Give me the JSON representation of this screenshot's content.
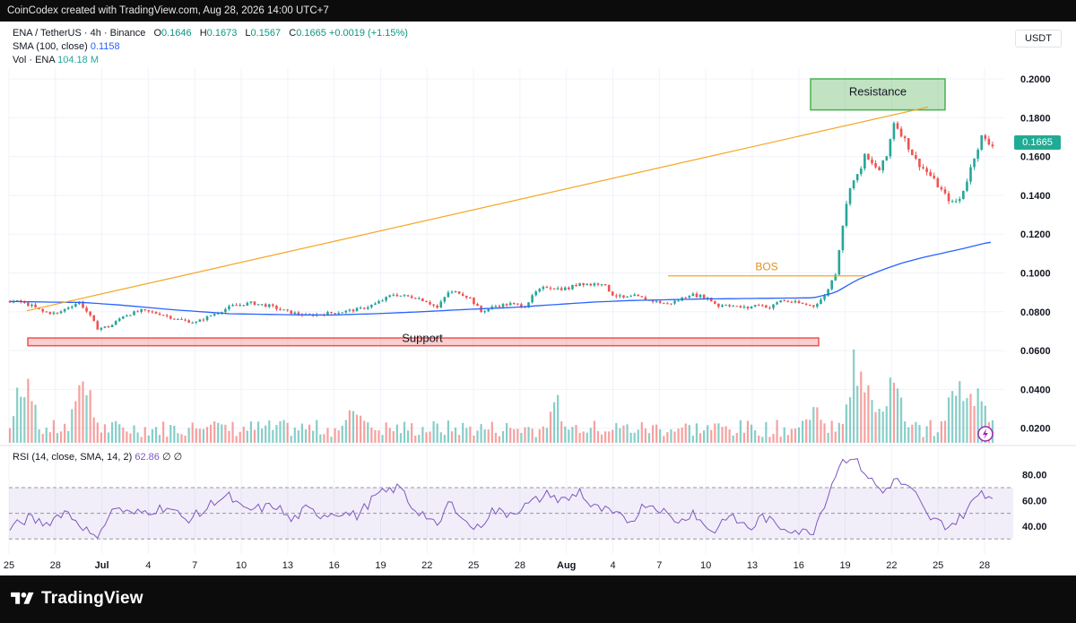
{
  "header": {
    "attribution": "CoinCodex created with TradingView.com, Aug 28, 2026 14:00 UTC+7"
  },
  "legend": {
    "symbol": "ENA / TetherUS · 4h · Binance",
    "o_label": "O",
    "o": "0.1646",
    "h_label": "H",
    "h": "0.1673",
    "l_label": "L",
    "l": "0.1567",
    "c_label": "C",
    "c": "0.1665",
    "change": "+0.0019 (+1.15%)",
    "sma_label": "SMA (100, close)",
    "sma_value": "0.1158",
    "vol_label": "Vol · ENA",
    "vol_value": "104.18 M",
    "rsi_label": "RSI (14, close, SMA, 14, 2)",
    "rsi_value": "62.86",
    "rsi_extra": "∅ ∅"
  },
  "currency": "USDT",
  "last_price": "0.1665",
  "footer": {
    "brand": "TradingView"
  },
  "colors": {
    "up": "#26a69a",
    "down": "#ef5350",
    "sma": "#2962ff",
    "trend": "#f5a623",
    "rsi": "#7e57c2",
    "support": "#ef5350",
    "resistance": "#4caf50"
  },
  "chart_data": {
    "type": "candlestick",
    "price_axis": {
      "ticks": [
        "0.2000",
        "0.1800",
        "0.1600",
        "0.1400",
        "0.1200",
        "0.1000",
        "0.0800",
        "0.0600",
        "0.0400",
        "0.0200"
      ],
      "ylim": [
        0.01,
        0.2
      ]
    },
    "rsi_axis": {
      "ticks": [
        "80.00",
        "60.00",
        "40.00"
      ],
      "upper_band": 70,
      "lower_band": 30
    },
    "x_axis": {
      "ticks": [
        "25",
        "28",
        "Jul",
        "4",
        "7",
        "10",
        "13",
        "16",
        "19",
        "22",
        "25",
        "28",
        "Aug",
        "4",
        "7",
        "10",
        "13",
        "16",
        "19",
        "22",
        "25",
        "28"
      ]
    },
    "annotations": {
      "resistance": "Resistance",
      "support": "Support",
      "bos": "BOS",
      "support_range": [
        0.0625,
        0.0665
      ],
      "resistance_range": [
        0.184,
        0.2
      ],
      "bos_level": 0.0985
    },
    "price_path": [
      [
        0,
        0.0855
      ],
      [
        6,
        0.085
      ],
      [
        12,
        0.083
      ],
      [
        18,
        0.08
      ],
      [
        26,
        0.079
      ],
      [
        32,
        0.0825
      ],
      [
        38,
        0.085
      ],
      [
        43,
        0.079
      ],
      [
        48,
        0.0715
      ],
      [
        55,
        0.0725
      ],
      [
        62,
        0.078
      ],
      [
        72,
        0.0805
      ],
      [
        82,
        0.079
      ],
      [
        92,
        0.076
      ],
      [
        102,
        0.0745
      ],
      [
        112,
        0.079
      ],
      [
        122,
        0.083
      ],
      [
        132,
        0.0845
      ],
      [
        142,
        0.083
      ],
      [
        152,
        0.08
      ],
      [
        162,
        0.078
      ],
      [
        172,
        0.079
      ],
      [
        182,
        0.08
      ],
      [
        192,
        0.0815
      ],
      [
        200,
        0.084
      ],
      [
        210,
        0.089
      ],
      [
        216,
        0.088
      ],
      [
        222,
        0.0875
      ],
      [
        228,
        0.0855
      ],
      [
        234,
        0.082
      ],
      [
        240,
        0.09
      ],
      [
        246,
        0.09
      ],
      [
        252,
        0.087
      ],
      [
        258,
        0.08
      ],
      [
        266,
        0.083
      ],
      [
        274,
        0.084
      ],
      [
        282,
        0.083
      ],
      [
        288,
        0.09
      ],
      [
        294,
        0.093
      ],
      [
        300,
        0.092
      ],
      [
        306,
        0.092
      ],
      [
        312,
        0.095
      ],
      [
        318,
        0.094
      ],
      [
        324,
        0.095
      ],
      [
        330,
        0.089
      ],
      [
        336,
        0.087
      ],
      [
        342,
        0.088
      ],
      [
        350,
        0.086
      ],
      [
        360,
        0.084
      ],
      [
        366,
        0.086
      ],
      [
        372,
        0.089
      ],
      [
        378,
        0.088
      ],
      [
        382,
        0.087
      ],
      [
        388,
        0.083
      ],
      [
        392,
        0.084
      ],
      [
        398,
        0.0825
      ],
      [
        404,
        0.082
      ],
      [
        410,
        0.084
      ],
      [
        416,
        0.082
      ],
      [
        422,
        0.086
      ],
      [
        428,
        0.085
      ],
      [
        434,
        0.084
      ],
      [
        440,
        0.083
      ],
      [
        446,
        0.088
      ],
      [
        452,
        0.1
      ],
      [
        456,
        0.125
      ],
      [
        460,
        0.145
      ],
      [
        464,
        0.15
      ],
      [
        468,
        0.16
      ],
      [
        472,
        0.156
      ],
      [
        476,
        0.153
      ],
      [
        480,
        0.16
      ],
      [
        484,
        0.178
      ],
      [
        488,
        0.172
      ],
      [
        492,
        0.165
      ],
      [
        496,
        0.158
      ],
      [
        500,
        0.154
      ],
      [
        504,
        0.15
      ],
      [
        508,
        0.145
      ],
      [
        512,
        0.14
      ],
      [
        516,
        0.136
      ],
      [
        520,
        0.138
      ],
      [
        524,
        0.148
      ],
      [
        528,
        0.16
      ],
      [
        532,
        0.17
      ],
      [
        536,
        0.1665
      ]
    ],
    "sma_path": [
      [
        0,
        0.0853
      ],
      [
        20,
        0.085
      ],
      [
        40,
        0.0848
      ],
      [
        60,
        0.0835
      ],
      [
        90,
        0.081
      ],
      [
        120,
        0.079
      ],
      [
        150,
        0.0785
      ],
      [
        175,
        0.0783
      ],
      [
        200,
        0.079
      ],
      [
        225,
        0.08
      ],
      [
        250,
        0.0812
      ],
      [
        275,
        0.0822
      ],
      [
        300,
        0.0838
      ],
      [
        320,
        0.085
      ],
      [
        340,
        0.0858
      ],
      [
        360,
        0.0862
      ],
      [
        380,
        0.0866
      ],
      [
        400,
        0.0868
      ],
      [
        420,
        0.087
      ],
      [
        440,
        0.0872
      ],
      [
        452,
        0.09
      ],
      [
        464,
        0.0965
      ],
      [
        476,
        0.101
      ],
      [
        488,
        0.105
      ],
      [
        500,
        0.108
      ],
      [
        512,
        0.1105
      ],
      [
        524,
        0.113
      ],
      [
        536,
        0.1158
      ]
    ],
    "volume_profile": {
      "base": 8,
      "bursts": [
        [
          8,
          46
        ],
        [
          40,
          42
        ],
        [
          110,
          18
        ],
        [
          190,
          28
        ],
        [
          300,
          26
        ],
        [
          440,
          22
        ],
        [
          464,
          60
        ],
        [
          470,
          52
        ],
        [
          484,
          40
        ],
        [
          520,
          58
        ],
        [
          530,
          44
        ]
      ]
    },
    "rsi_path": [
      [
        0,
        38
      ],
      [
        10,
        46
      ],
      [
        20,
        42
      ],
      [
        30,
        52
      ],
      [
        40,
        40
      ],
      [
        46,
        30
      ],
      [
        52,
        43
      ],
      [
        58,
        55
      ],
      [
        66,
        49
      ],
      [
        76,
        52
      ],
      [
        86,
        55
      ],
      [
        96,
        45
      ],
      [
        106,
        51
      ],
      [
        112,
        60
      ],
      [
        120,
        63
      ],
      [
        128,
        52
      ],
      [
        138,
        54
      ],
      [
        146,
        56
      ],
      [
        154,
        44
      ],
      [
        162,
        53
      ],
      [
        170,
        49
      ],
      [
        180,
        51
      ],
      [
        190,
        48
      ],
      [
        200,
        63
      ],
      [
        210,
        69
      ],
      [
        214,
        70
      ],
      [
        220,
        55
      ],
      [
        228,
        48
      ],
      [
        234,
        38
      ],
      [
        240,
        58
      ],
      [
        246,
        52
      ],
      [
        250,
        42
      ],
      [
        256,
        38
      ],
      [
        264,
        52
      ],
      [
        272,
        50
      ],
      [
        280,
        54
      ],
      [
        288,
        60
      ],
      [
        296,
        66
      ],
      [
        300,
        60
      ],
      [
        306,
        61
      ],
      [
        312,
        68
      ],
      [
        318,
        55
      ],
      [
        326,
        52
      ],
      [
        332,
        48
      ],
      [
        340,
        44
      ],
      [
        348,
        58
      ],
      [
        356,
        54
      ],
      [
        362,
        46
      ],
      [
        368,
        44
      ],
      [
        374,
        52
      ],
      [
        380,
        40
      ],
      [
        386,
        36
      ],
      [
        392,
        48
      ],
      [
        398,
        44
      ],
      [
        406,
        38
      ],
      [
        412,
        48
      ],
      [
        420,
        40
      ],
      [
        428,
        38
      ],
      [
        434,
        35
      ],
      [
        440,
        37
      ],
      [
        446,
        58
      ],
      [
        454,
        88
      ],
      [
        460,
        95
      ],
      [
        466,
        86
      ],
      [
        472,
        75
      ],
      [
        478,
        66
      ],
      [
        484,
        76
      ],
      [
        490,
        72
      ],
      [
        496,
        64
      ],
      [
        502,
        48
      ],
      [
        508,
        43
      ],
      [
        514,
        40
      ],
      [
        520,
        46
      ],
      [
        528,
        60
      ],
      [
        532,
        68
      ],
      [
        536,
        63
      ]
    ]
  }
}
